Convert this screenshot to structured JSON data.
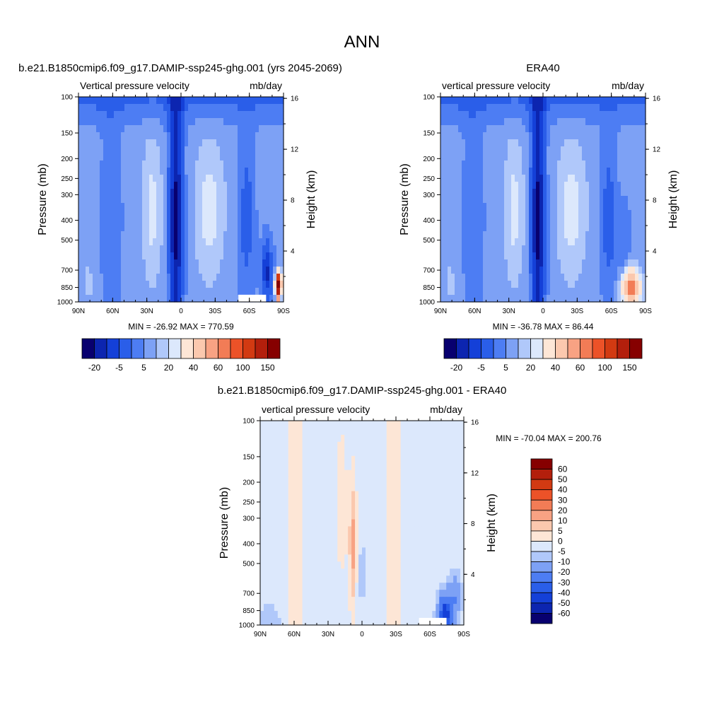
{
  "figure": {
    "title": "ANN"
  },
  "chart_data": [
    {
      "type": "heatmap",
      "id": "model",
      "title": "b.e21.B1850cmip6.f09_g17.DAMIP-ssp245-ghg.001 (yrs 2045-2069)",
      "left_label": "Vertical pressure velocity",
      "right_label": "mb/day",
      "ylabel": "Pressure (mb)",
      "ylabel_right": "Height (km)",
      "x_ticks": [
        "90N",
        "60N",
        "30N",
        "0",
        "30S",
        "60S",
        "90S"
      ],
      "y_ticks": [
        "100",
        "150",
        "200",
        "250",
        "300",
        "400",
        "500",
        "700",
        "850",
        "1000"
      ],
      "height_ticks": [
        "16",
        "12",
        "8",
        "4"
      ],
      "stats": "MIN = -26.92  MAX = 770.59",
      "colorbar": {
        "orientation": "horizontal",
        "tick_labels": [
          "-20",
          "-5",
          "5",
          "20",
          "40",
          "60",
          "100",
          "150"
        ],
        "colors": [
          "#08006f",
          "#0c25b0",
          "#1440d8",
          "#2a5ee9",
          "#4d7df3",
          "#7da1f5",
          "#b0c8fa",
          "#dce8fc",
          "#fde6d6",
          "#fbc8ae",
          "#f8a283",
          "#f27c56",
          "#ec5228",
          "#d23a12",
          "#b31f0c",
          "#860000"
        ]
      }
    },
    {
      "type": "heatmap",
      "id": "obs",
      "title": "ERA40",
      "left_label": "vertical pressure velocity",
      "right_label": "mb/day",
      "ylabel": "Pressure (mb)",
      "ylabel_right": "Height (km)",
      "x_ticks": [
        "90N",
        "60N",
        "30N",
        "0",
        "30S",
        "60S",
        "90S"
      ],
      "y_ticks": [
        "100",
        "150",
        "200",
        "250",
        "300",
        "400",
        "500",
        "700",
        "850",
        "1000"
      ],
      "height_ticks": [
        "16",
        "12",
        "8",
        "4"
      ],
      "stats": "MIN = -36.78  MAX =  86.44",
      "colorbar": {
        "orientation": "horizontal",
        "tick_labels": [
          "-20",
          "-5",
          "5",
          "20",
          "40",
          "60",
          "100",
          "150"
        ],
        "colors": [
          "#08006f",
          "#0c25b0",
          "#1440d8",
          "#2a5ee9",
          "#4d7df3",
          "#7da1f5",
          "#b0c8fa",
          "#dce8fc",
          "#fde6d6",
          "#fbc8ae",
          "#f8a283",
          "#f27c56",
          "#ec5228",
          "#d23a12",
          "#b31f0c",
          "#860000"
        ]
      }
    },
    {
      "type": "heatmap",
      "id": "diff",
      "title": "b.e21.B1850cmip6.f09_g17.DAMIP-ssp245-ghg.001 - ERA40",
      "left_label": "vertical pressure velocity",
      "right_label": "mb/day",
      "ylabel": "Pressure (mb)",
      "ylabel_right": "Height (km)",
      "x_ticks": [
        "90N",
        "60N",
        "30N",
        "0",
        "30S",
        "60S",
        "90S"
      ],
      "y_ticks": [
        "100",
        "150",
        "200",
        "250",
        "300",
        "400",
        "500",
        "700",
        "850",
        "1000"
      ],
      "height_ticks": [
        "16",
        "12",
        "8",
        "4"
      ],
      "stats": "MIN = -70.04  MAX = 200.76",
      "colorbar": {
        "orientation": "vertical",
        "tick_labels": [
          "60",
          "50",
          "40",
          "30",
          "20",
          "10",
          "5",
          "0",
          "-5",
          "-10",
          "-20",
          "-30",
          "-40",
          "-50",
          "-60"
        ],
        "colors": [
          "#860000",
          "#b31f0c",
          "#d23a12",
          "#ec5228",
          "#f27c56",
          "#f8a283",
          "#fbc8ae",
          "#fde6d6",
          "#dce8fc",
          "#b0c8fa",
          "#7da1f5",
          "#4d7df3",
          "#2a5ee9",
          "#1440d8",
          "#0c25b0",
          "#08006f"
        ]
      }
    }
  ]
}
